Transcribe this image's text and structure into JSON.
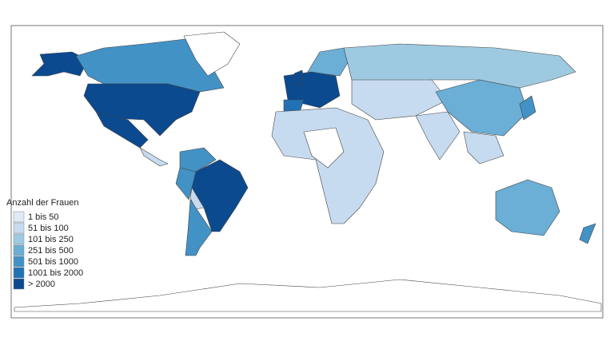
{
  "legend": {
    "title": "Anzahl der Frauen",
    "items": [
      {
        "label": "1 bis 50",
        "color": "#deebf7"
      },
      {
        "label": "51 bis 100",
        "color": "#c6dbef"
      },
      {
        "label": "101 bis 250",
        "color": "#9ecae1"
      },
      {
        "label": "251 bis 500",
        "color": "#6baed6"
      },
      {
        "label": "501 bis 1000",
        "color": "#4292c6"
      },
      {
        "label": "1001 bis 2000",
        "color": "#2171b5"
      },
      {
        "label": "> 2000",
        "color": "#0b4a8f"
      }
    ]
  }
}
